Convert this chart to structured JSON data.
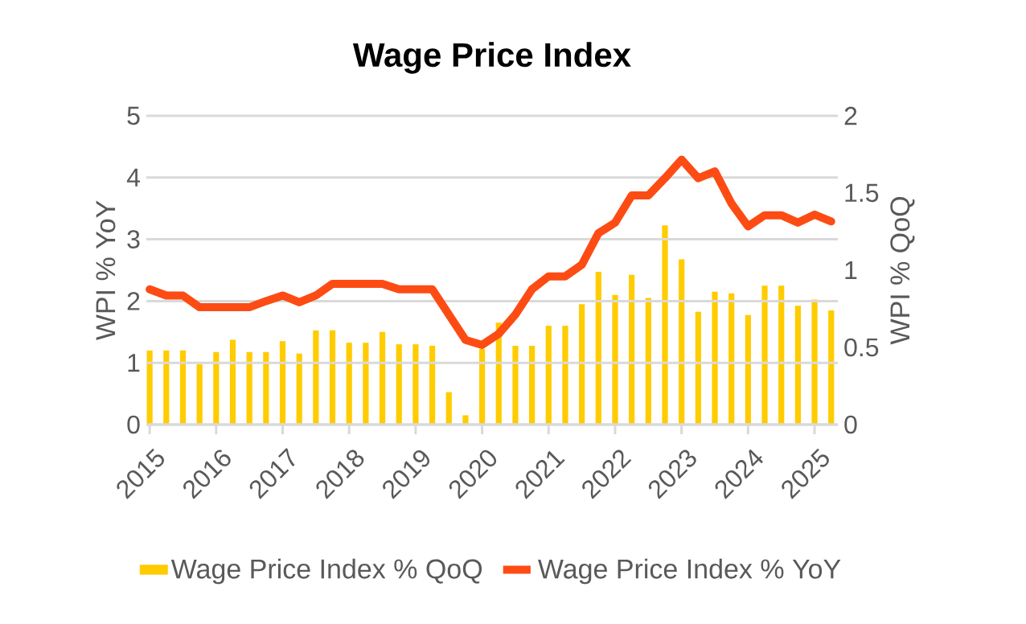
{
  "chart_data": {
    "type": "bar",
    "title": "Wage Price Index",
    "ylabel": "WPI % YoY",
    "y2label": "WPI % QoQ",
    "x": [
      2015,
      2015.25,
      2015.5,
      2015.75,
      2016,
      2016.25,
      2016.5,
      2016.75,
      2017,
      2017.25,
      2017.5,
      2017.75,
      2018,
      2018.25,
      2018.5,
      2018.75,
      2019,
      2019.25,
      2019.5,
      2019.75,
      2020,
      2020.25,
      2020.5,
      2020.75,
      2021,
      2021.25,
      2021.5,
      2021.75,
      2022,
      2022.25,
      2022.5,
      2022.75,
      2023,
      2023.25,
      2023.5,
      2023.75,
      2024,
      2024.25,
      2024.5,
      2024.75,
      2025,
      2025.25
    ],
    "xlim": [
      2014.95,
      2025.35
    ],
    "xticks": [
      2015,
      2016,
      2017,
      2018,
      2019,
      2020,
      2021,
      2022,
      2023,
      2024,
      2025
    ],
    "ylim": [
      0,
      5
    ],
    "yticks": [
      0,
      1,
      2,
      3,
      4,
      5
    ],
    "y2lim": [
      0,
      2
    ],
    "y2ticks": [
      0,
      0.5,
      1,
      1.5,
      2
    ],
    "grid": "y",
    "legend": "bottom",
    "series": [
      {
        "name": "Wage Price Index % QoQ",
        "axis": "y2",
        "color": "#ffcc00",
        "values": [
          0.48,
          0.48,
          0.48,
          0.39,
          0.47,
          0.55,
          0.47,
          0.47,
          0.54,
          0.46,
          0.61,
          0.61,
          0.53,
          0.53,
          0.6,
          0.52,
          0.52,
          0.51,
          0.21,
          0.06,
          0.49,
          0.66,
          0.51,
          0.51,
          0.64,
          0.64,
          0.78,
          0.99,
          0.84,
          0.97,
          0.82,
          1.29,
          1.07,
          0.73,
          0.86,
          0.85,
          0.71,
          0.9,
          0.9,
          0.77,
          0.81,
          0.74
        ]
      },
      {
        "name": "Wage Price Index % YoY",
        "type": "line",
        "color": "#fc4c14",
        "values": [
          2.19,
          2.09,
          2.09,
          1.9,
          1.9,
          1.9,
          1.9,
          2.0,
          2.09,
          1.98,
          2.09,
          2.28,
          2.28,
          2.28,
          2.28,
          2.19,
          2.19,
          2.19,
          1.78,
          1.37,
          1.29,
          1.47,
          1.78,
          2.19,
          2.4,
          2.4,
          2.59,
          3.1,
          3.27,
          3.71,
          3.71,
          3.99,
          4.29,
          3.99,
          4.1,
          3.58,
          3.21,
          3.39,
          3.39,
          3.27,
          3.4,
          3.29
        ]
      }
    ]
  }
}
